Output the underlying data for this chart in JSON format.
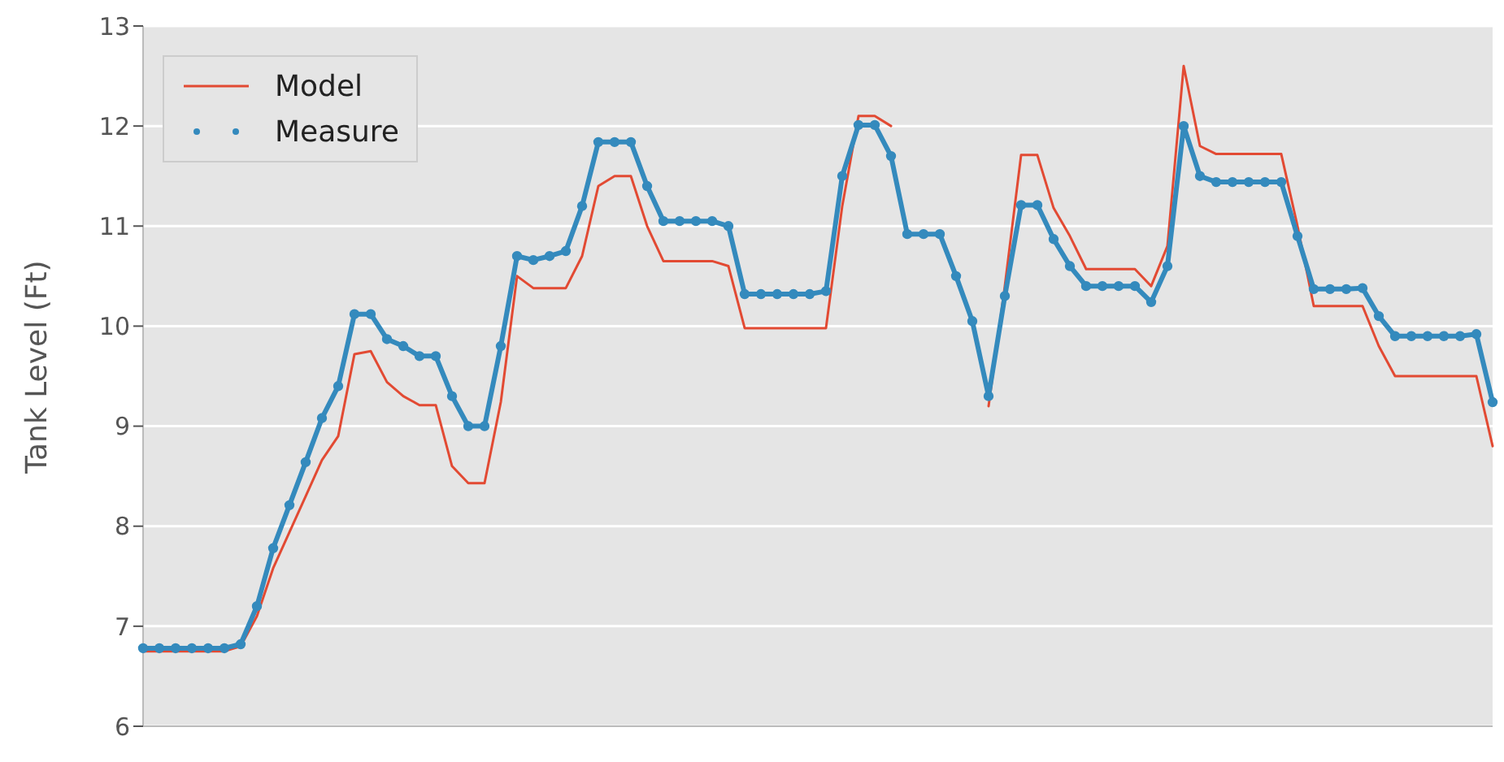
{
  "chart_data": {
    "type": "line",
    "ylabel": "Tank Level (Ft)",
    "ylim": [
      6,
      13
    ],
    "yticks": [
      6,
      7,
      8,
      9,
      10,
      11,
      12,
      13
    ],
    "grid": "y",
    "legend": "top left",
    "categories": [
      null,
      null,
      null,
      null,
      null,
      null,
      null,
      null,
      null,
      null,
      null,
      null,
      null,
      null,
      null,
      null,
      null,
      null,
      null,
      null,
      null,
      null,
      null,
      null,
      null,
      null,
      null,
      null,
      null,
      null,
      null,
      null,
      null,
      null,
      null,
      null,
      null,
      null,
      null,
      null,
      null,
      null,
      null,
      null,
      null,
      null,
      null,
      null,
      null,
      null,
      null,
      null,
      null,
      null,
      null,
      null,
      null,
      null,
      null,
      null,
      null,
      null,
      null,
      null,
      null,
      null,
      null,
      null,
      null,
      null,
      null,
      null,
      null,
      null,
      null,
      null,
      null,
      null,
      null,
      null,
      null,
      null,
      null,
      null
    ],
    "series": [
      {
        "name": "Model",
        "color": "#e24a33",
        "marker": "none",
        "values": [
          6.75,
          6.75,
          6.75,
          6.75,
          6.75,
          6.75,
          6.8,
          7.1,
          7.58,
          7.94,
          8.3,
          8.66,
          8.9,
          9.72,
          9.75,
          9.44,
          9.3,
          9.21,
          9.21,
          8.6,
          8.43,
          8.43,
          9.24,
          10.5,
          10.38,
          10.38,
          10.38,
          10.7,
          11.4,
          11.5,
          11.5,
          11.0,
          10.65,
          10.65,
          10.65,
          10.65,
          10.6,
          9.98,
          9.98,
          9.98,
          9.98,
          9.98,
          9.98,
          11.2,
          12.1,
          12.1,
          12.0,
          null,
          null,
          null,
          null,
          null,
          9.2,
          10.4,
          11.71,
          11.71,
          11.18,
          10.9,
          10.57,
          10.57,
          10.57,
          10.57,
          10.4,
          10.8,
          12.6,
          11.8,
          11.72,
          11.72,
          11.72,
          11.72,
          11.72,
          11.0,
          10.2,
          10.2,
          10.2,
          10.2,
          9.8,
          9.5,
          9.5,
          9.5,
          9.5,
          9.5,
          9.5,
          8.8
        ]
      },
      {
        "name": "Measure",
        "color": "#348abd",
        "marker": "circle",
        "values": [
          6.78,
          6.78,
          6.78,
          6.78,
          6.78,
          6.78,
          6.82,
          7.2,
          7.78,
          8.21,
          8.64,
          9.08,
          9.4,
          10.12,
          10.12,
          9.87,
          9.8,
          9.7,
          9.7,
          9.3,
          9.0,
          9.0,
          9.8,
          10.7,
          10.66,
          10.7,
          10.75,
          11.2,
          11.84,
          11.84,
          11.84,
          11.4,
          11.05,
          11.05,
          11.05,
          11.05,
          11.0,
          10.32,
          10.32,
          10.32,
          10.32,
          10.32,
          10.35,
          11.5,
          12.01,
          12.01,
          11.7,
          10.92,
          10.92,
          10.92,
          10.5,
          10.05,
          9.3,
          10.3,
          11.21,
          11.21,
          10.87,
          10.6,
          10.4,
          10.4,
          10.4,
          10.4,
          10.24,
          10.6,
          12.0,
          11.5,
          11.44,
          11.44,
          11.44,
          11.44,
          11.44,
          10.9,
          10.37,
          10.37,
          10.37,
          10.38,
          10.1,
          9.9,
          9.9,
          9.9,
          9.9,
          9.9,
          9.92,
          9.24
        ]
      }
    ]
  }
}
